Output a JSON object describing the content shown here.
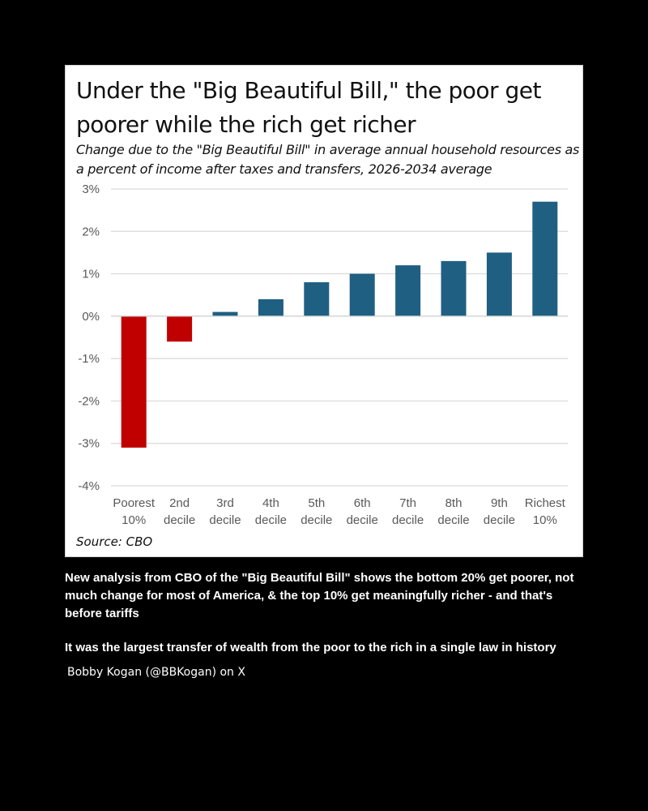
{
  "title": "Under the \"Big Beautiful Bill,\" the poor get poorer while the rich get richer",
  "subtitle": "Change due to the \"Big Beautiful Bill\" in average annual household resources as a percent of income after taxes and transfers, 2026-2034 average",
  "source": "Source: CBO",
  "caption_1": "New analysis from CBO of the \"Big Beautiful Bill\" shows the bottom 20% get poorer, not much change for most of America, & the top 10% get meaningfully richer - and that's before tariffs",
  "caption_2": "It was the largest transfer of wealth from the poor to the rich in a single law in history",
  "author": "Bobby Kogan (@BBKogan) on X",
  "colors": {
    "negative": "#c00000",
    "positive": "#1f5f82",
    "grid": "#d9d9d9"
  },
  "chart_data": {
    "type": "bar",
    "title": "Under the \"Big Beautiful Bill,\" the poor get poorer while the rich get richer",
    "subtitle": "Change due to the \"Big Beautiful Bill\" in average annual household resources as a percent of income after taxes and transfers, 2026-2034 average",
    "categories": [
      [
        "Poorest",
        "10%"
      ],
      [
        "2nd",
        "decile"
      ],
      [
        "3rd",
        "decile"
      ],
      [
        "4th",
        "decile"
      ],
      [
        "5th",
        "decile"
      ],
      [
        "6th",
        "decile"
      ],
      [
        "7th",
        "decile"
      ],
      [
        "8th",
        "decile"
      ],
      [
        "9th",
        "decile"
      ],
      [
        "Richest",
        "10%"
      ]
    ],
    "values": [
      -3.1,
      -0.6,
      0.1,
      0.4,
      0.8,
      1.0,
      1.2,
      1.3,
      1.5,
      2.7
    ],
    "ylim": [
      -4,
      3
    ],
    "yticks": [
      3,
      2,
      1,
      0,
      -1,
      -2,
      -3,
      -4
    ],
    "ytick_labels": [
      "3%",
      "2%",
      "1%",
      "0%",
      "-1%",
      "-2%",
      "-3%",
      "-4%"
    ],
    "grid": true,
    "xlabel": "",
    "ylabel": ""
  }
}
